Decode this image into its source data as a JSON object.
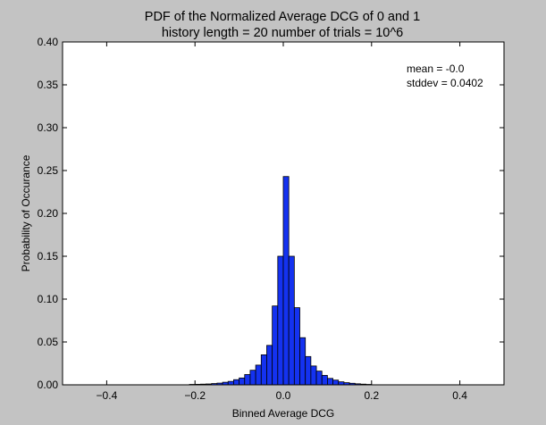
{
  "chart_data": {
    "type": "bar",
    "title": "PDF of the Normalized Average DCG of 0 and 1",
    "subtitle": "history length = 20  number of trials = 10^6",
    "xlabel": "Binned Average DCG",
    "ylabel": "Probability of Occurance",
    "xlim": [
      -0.5,
      0.5
    ],
    "ylim": [
      0.0,
      0.4
    ],
    "xticks": [
      -0.4,
      -0.2,
      0.0,
      0.2,
      0.4
    ],
    "xtick_labels": [
      "−0.4",
      "−0.2",
      "0.0",
      "0.2",
      "0.4"
    ],
    "yticks": [
      0.0,
      0.05,
      0.1,
      0.15,
      0.2,
      0.25,
      0.3,
      0.35,
      0.4
    ],
    "ytick_labels": [
      "0.00",
      "0.05",
      "0.10",
      "0.15",
      "0.20",
      "0.25",
      "0.30",
      "0.35",
      "0.40"
    ],
    "bin_width": 0.0125,
    "bar_color": "#1432f0",
    "edge_color": "#000000",
    "grid": false,
    "bins": [
      {
        "x": -0.2,
        "y": 0.0005
      },
      {
        "x": -0.1875,
        "y": 0.0006
      },
      {
        "x": -0.175,
        "y": 0.0008
      },
      {
        "x": -0.1625,
        "y": 0.001
      },
      {
        "x": -0.15,
        "y": 0.0015
      },
      {
        "x": -0.1375,
        "y": 0.002
      },
      {
        "x": -0.125,
        "y": 0.003
      },
      {
        "x": -0.1125,
        "y": 0.004
      },
      {
        "x": -0.1,
        "y": 0.006
      },
      {
        "x": -0.0875,
        "y": 0.008
      },
      {
        "x": -0.075,
        "y": 0.012
      },
      {
        "x": -0.0625,
        "y": 0.017
      },
      {
        "x": -0.05,
        "y": 0.023
      },
      {
        "x": -0.0375,
        "y": 0.035
      },
      {
        "x": -0.025,
        "y": 0.046
      },
      {
        "x": -0.0125,
        "y": 0.092
      },
      {
        "x": 0.0,
        "y": 0.15
      },
      {
        "x": 0.0125,
        "y": 0.243
      },
      {
        "x": 0.025,
        "y": 0.15
      },
      {
        "x": 0.0375,
        "y": 0.09
      },
      {
        "x": 0.05,
        "y": 0.055
      },
      {
        "x": 0.0625,
        "y": 0.033
      },
      {
        "x": 0.075,
        "y": 0.022
      },
      {
        "x": 0.0875,
        "y": 0.016
      },
      {
        "x": 0.1,
        "y": 0.011
      },
      {
        "x": 0.1125,
        "y": 0.0075
      },
      {
        "x": 0.125,
        "y": 0.0055
      },
      {
        "x": 0.1375,
        "y": 0.0035
      },
      {
        "x": 0.15,
        "y": 0.0025
      },
      {
        "x": 0.1625,
        "y": 0.0018
      },
      {
        "x": 0.175,
        "y": 0.0012
      },
      {
        "x": 0.1875,
        "y": 0.0008
      },
      {
        "x": 0.2,
        "y": 0.0005
      }
    ],
    "annotations": [
      {
        "text": "mean = -0.0"
      },
      {
        "text": "stddev = 0.0402"
      }
    ]
  }
}
